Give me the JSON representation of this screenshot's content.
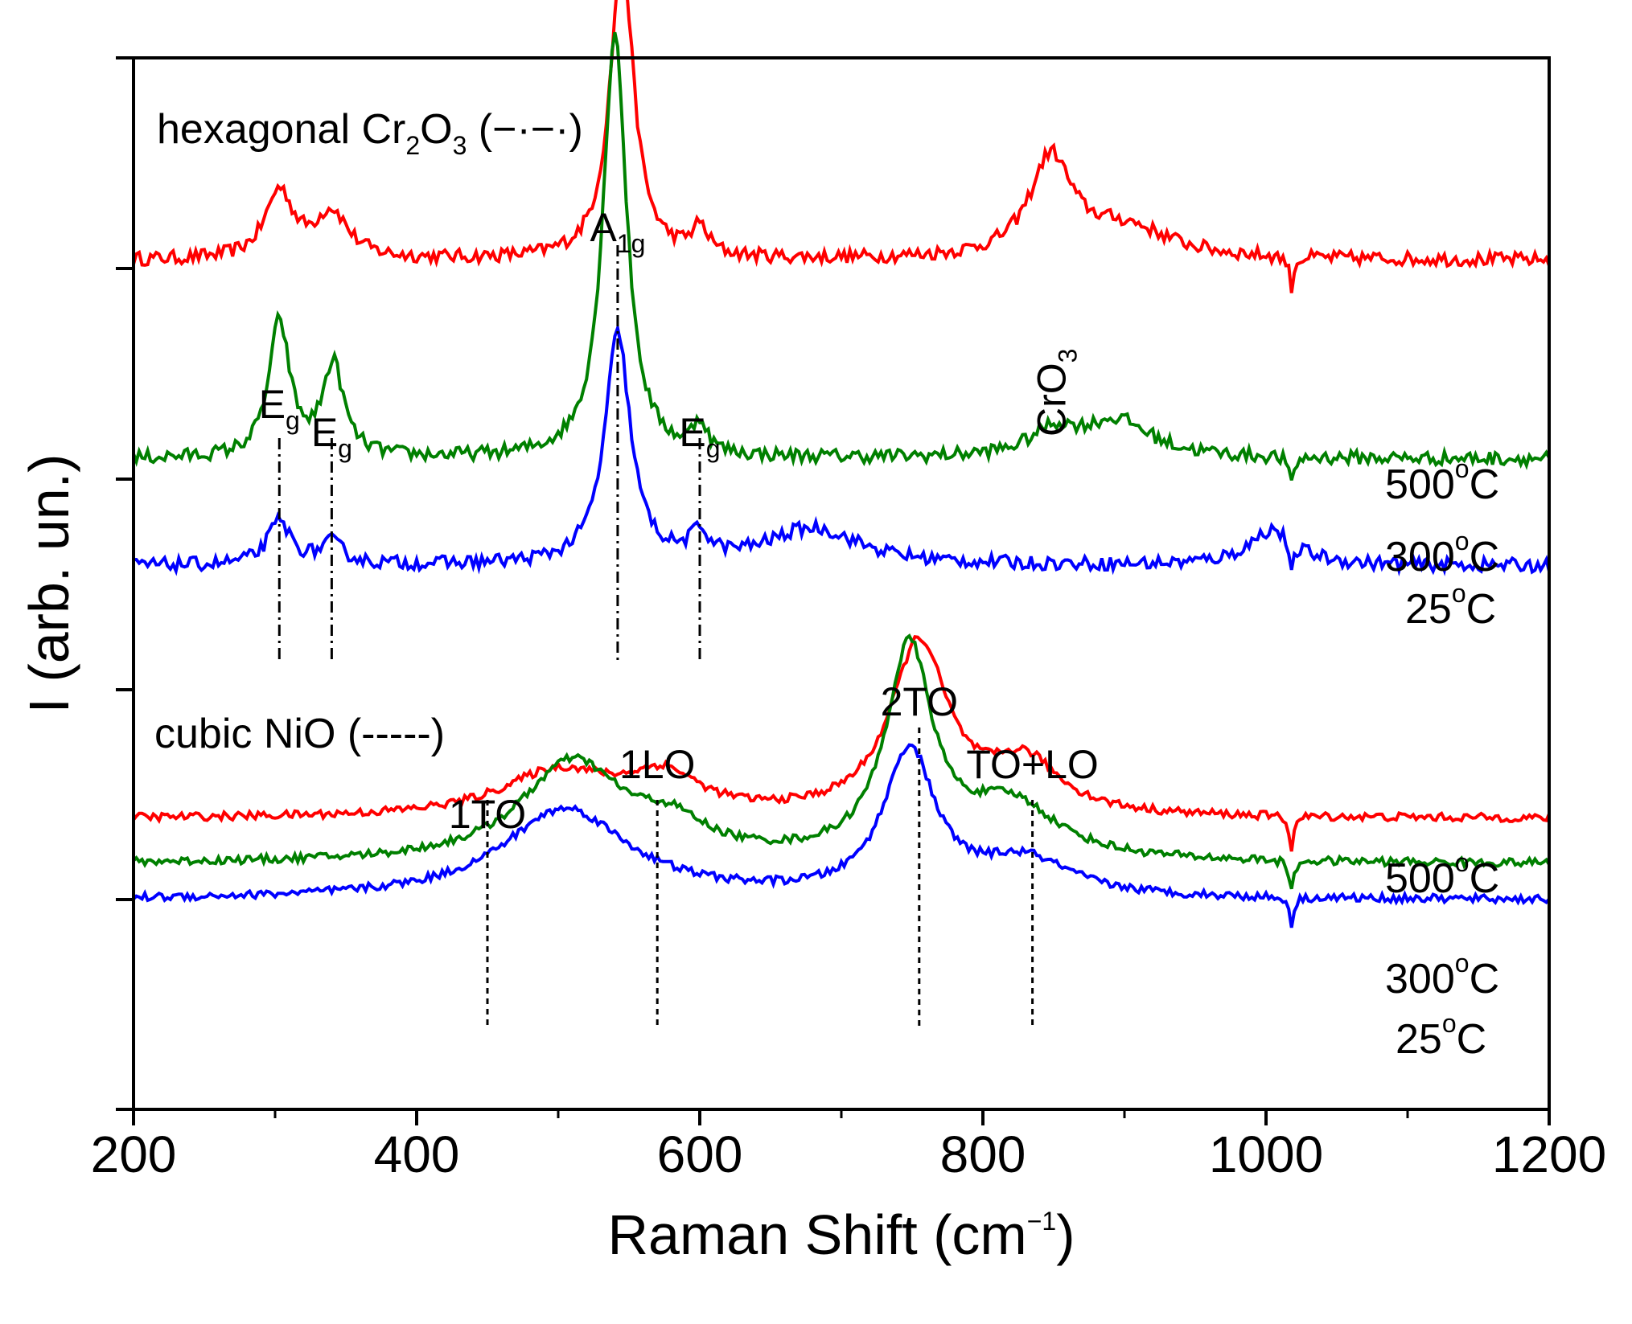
{
  "chart_data": {
    "type": "line",
    "xlabel": "Raman Shift (cm",
    "xlabel_sup": "−1",
    "xlabel_close": ")",
    "ylabel": "I (arb. un.)",
    "xlim": [
      200,
      1200
    ],
    "x_ticks": [
      "200",
      "400",
      "600",
      "800",
      "1000",
      "1200"
    ],
    "grid": false,
    "panels": [
      {
        "id": "cr2o3",
        "title": {
          "pre": "hexagonal Cr",
          "sub1": "2",
          "mid": "O",
          "sub2": "3",
          "post": " (−·−·)"
        },
        "style": "dash-dot",
        "reference_lines": [
          {
            "x": 303,
            "label": "E",
            "sub": "g"
          },
          {
            "x": 340,
            "label": "E",
            "sub": "g"
          },
          {
            "x": 542,
            "label": "A",
            "sub": "1g"
          },
          {
            "x": 600,
            "label": "E",
            "sub": "g"
          }
        ],
        "annotation": {
          "x": 848,
          "text": "CrO",
          "sub": "3",
          "rotated": true
        },
        "series": [
          {
            "name": "500°C",
            "temp": "500",
            "unit": "C",
            "color": "#ff0000",
            "offset": 1.45,
            "peaks": [
              [
                303,
                0.22,
                12
              ],
              [
                340,
                0.15,
                14
              ],
              [
                545,
                1.0,
                10
              ],
              [
                600,
                0.09,
                7
              ],
              [
                848,
                0.32,
                18
              ],
              [
                900,
                0.1,
                40
              ],
              [
                1018,
                -0.1,
                2
              ]
            ]
          },
          {
            "name": "300°C",
            "temp": "300",
            "unit": "C",
            "color": "#008000",
            "offset": 0.8,
            "peaks": [
              [
                303,
                0.44,
                9
              ],
              [
                341,
                0.3,
                9
              ],
              [
                540,
                1.4,
                10
              ],
              [
                600,
                0.1,
                6
              ],
              [
                850,
                0.08,
                20
              ],
              [
                895,
                0.12,
                30
              ],
              [
                1018,
                -0.1,
                2
              ]
            ]
          },
          {
            "name": "25°C",
            "temp": "25",
            "unit": "C",
            "color": "#0000ff",
            "offset": 0.45,
            "peaks": [
              [
                303,
                0.14,
                10
              ],
              [
                340,
                0.07,
                10
              ],
              [
                542,
                0.75,
                11
              ],
              [
                600,
                0.08,
                8
              ],
              [
                680,
                0.12,
                40
              ],
              [
                1005,
                0.12,
                20
              ],
              [
                1018,
                -0.12,
                2
              ]
            ]
          }
        ]
      },
      {
        "id": "nio",
        "title": {
          "text": "cubic NiO (-----)"
        },
        "style": "dashed",
        "reference_lines": [
          {
            "x": 450,
            "label": "1TO"
          },
          {
            "x": 570,
            "label": "1LO"
          },
          {
            "x": 755,
            "label": "2TO"
          },
          {
            "x": 835,
            "label": "TO+LO"
          }
        ],
        "series": [
          {
            "name": "500°C",
            "temp": "500",
            "unit": "C",
            "color": "#ff0000",
            "offset": 0.85,
            "peaks": [
              [
                500,
                0.25,
                50
              ],
              [
                575,
                0.2,
                30
              ],
              [
                755,
                0.95,
                25
              ],
              [
                830,
                0.28,
                30
              ],
              [
                1018,
                -0.18,
                2
              ]
            ]
          },
          {
            "name": "300°C",
            "temp": "300",
            "unit": "C",
            "color": "#008000",
            "offset": 0.6,
            "peaks": [
              [
                510,
                0.55,
                45
              ],
              [
                580,
                0.15,
                30
              ],
              [
                748,
                1.15,
                20
              ],
              [
                820,
                0.3,
                40
              ],
              [
                1018,
                -0.18,
                2
              ]
            ]
          },
          {
            "name": "25°C",
            "temp": "25",
            "unit": "C",
            "color": "#0000ff",
            "offset": 0.4,
            "peaks": [
              [
                505,
                0.5,
                55
              ],
              [
                748,
                0.8,
                22
              ],
              [
                830,
                0.2,
                40
              ],
              [
                1018,
                -0.15,
                2
              ]
            ]
          }
        ]
      }
    ]
  }
}
